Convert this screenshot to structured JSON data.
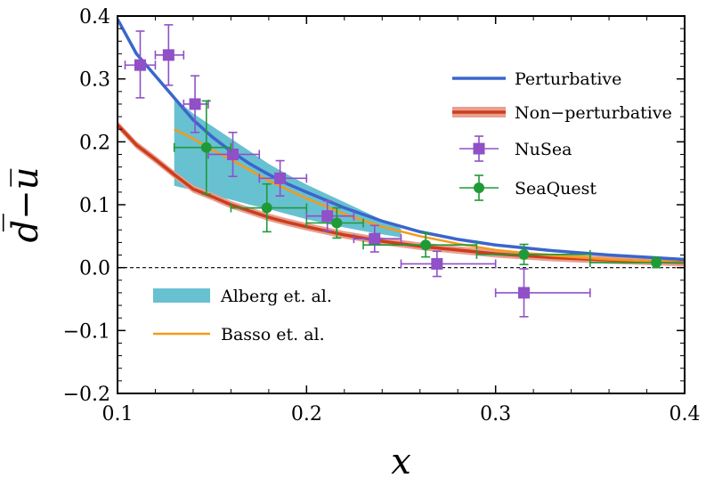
{
  "chart_data": {
    "type": "line",
    "xlabel": "x",
    "ylabel": "d̅−u̅",
    "xlim": [
      0.1,
      0.4
    ],
    "ylim": [
      -0.2,
      0.4
    ],
    "xticks": [
      0.1,
      0.2,
      0.3,
      0.4
    ],
    "xtick_labels": [
      "0.1",
      "0.2",
      "0.3",
      "0.4"
    ],
    "yticks": [
      -0.2,
      -0.1,
      0.0,
      0.1,
      0.2,
      0.3,
      0.4
    ],
    "ytick_labels": [
      "−0.2",
      "−0.1",
      "0.0",
      "0.1",
      "0.2",
      "0.3",
      "0.4"
    ],
    "grid": false,
    "zero_line": {
      "y": 0,
      "style": "dashed",
      "color": "#000000"
    },
    "legend_upper": {
      "placement": "top-right",
      "entries": [
        {
          "label": "Perturbative",
          "key": "perturbative"
        },
        {
          "label": "Non−perturbative",
          "key": "nonperturbative"
        },
        {
          "label": "NuSea",
          "key": "nusea"
        },
        {
          "label": "SeaQuest",
          "key": "seaquest"
        }
      ]
    },
    "legend_lower": {
      "placement": "bottom-left",
      "entries": [
        {
          "label": "Alberg et. al.",
          "key": "alberg"
        },
        {
          "label": "Basso et. al.",
          "key": "basso"
        }
      ]
    },
    "series": {
      "perturbative": {
        "color": "#3a66cc",
        "x": [
          0.1,
          0.11,
          0.12,
          0.13,
          0.14,
          0.15,
          0.16,
          0.17,
          0.18,
          0.19,
          0.2,
          0.22,
          0.24,
          0.26,
          0.28,
          0.3,
          0.33,
          0.36,
          0.4
        ],
        "y": [
          0.395,
          0.34,
          0.305,
          0.27,
          0.235,
          0.208,
          0.185,
          0.165,
          0.148,
          0.133,
          0.12,
          0.095,
          0.074,
          0.057,
          0.045,
          0.036,
          0.027,
          0.02,
          0.013
        ]
      },
      "nonperturbative": {
        "color": "#cc3d1c",
        "band_color": "#e8a090",
        "x": [
          0.1,
          0.11,
          0.12,
          0.13,
          0.14,
          0.15,
          0.16,
          0.17,
          0.18,
          0.19,
          0.2,
          0.22,
          0.24,
          0.26,
          0.28,
          0.3,
          0.33,
          0.36,
          0.4
        ],
        "y": [
          0.227,
          0.195,
          0.172,
          0.148,
          0.125,
          0.113,
          0.1,
          0.09,
          0.08,
          0.072,
          0.065,
          0.052,
          0.042,
          0.034,
          0.028,
          0.022,
          0.016,
          0.012,
          0.008
        ],
        "band": 0.006
      },
      "basso": {
        "color": "#f59a1a",
        "x": [
          0.13,
          0.14,
          0.15,
          0.16,
          0.17,
          0.18,
          0.19,
          0.2,
          0.22,
          0.24,
          0.26,
          0.28,
          0.3,
          0.33,
          0.36,
          0.4
        ],
        "y": [
          0.22,
          0.205,
          0.187,
          0.172,
          0.155,
          0.138,
          0.124,
          0.11,
          0.085,
          0.065,
          0.05,
          0.038,
          0.028,
          0.019,
          0.013,
          0.008
        ]
      },
      "alberg": {
        "color": "#67c1d1",
        "x": [
          0.13,
          0.14,
          0.15,
          0.16,
          0.17,
          0.18,
          0.19,
          0.2,
          0.21,
          0.22,
          0.23,
          0.24,
          0.25
        ],
        "lower": [
          0.13,
          0.123,
          0.115,
          0.108,
          0.1,
          0.093,
          0.085,
          0.077,
          0.07,
          0.064,
          0.058,
          0.053,
          0.048
        ],
        "upper": [
          0.27,
          0.245,
          0.225,
          0.205,
          0.185,
          0.165,
          0.148,
          0.132,
          0.118,
          0.104,
          0.09,
          0.076,
          0.062
        ]
      }
    },
    "points": {
      "nusea": {
        "color": "#9050c8",
        "marker": "square",
        "data": [
          {
            "x": 0.112,
            "y": 0.322,
            "xlo": 0.104,
            "xhi": 0.12,
            "ylo": 0.27,
            "yhi": 0.376
          },
          {
            "x": 0.127,
            "y": 0.338,
            "xlo": 0.12,
            "xhi": 0.135,
            "ylo": 0.29,
            "yhi": 0.386
          },
          {
            "x": 0.141,
            "y": 0.26,
            "xlo": 0.135,
            "xhi": 0.148,
            "ylo": 0.215,
            "yhi": 0.305
          },
          {
            "x": 0.161,
            "y": 0.18,
            "xlo": 0.148,
            "xhi": 0.175,
            "ylo": 0.145,
            "yhi": 0.215
          },
          {
            "x": 0.186,
            "y": 0.142,
            "xlo": 0.175,
            "xhi": 0.2,
            "ylo": 0.114,
            "yhi": 0.17
          },
          {
            "x": 0.211,
            "y": 0.082,
            "xlo": 0.2,
            "xhi": 0.225,
            "ylo": 0.058,
            "yhi": 0.106
          },
          {
            "x": 0.236,
            "y": 0.046,
            "xlo": 0.225,
            "xhi": 0.25,
            "ylo": 0.025,
            "yhi": 0.067
          },
          {
            "x": 0.269,
            "y": 0.006,
            "xlo": 0.25,
            "xhi": 0.3,
            "ylo": -0.014,
            "yhi": 0.026
          },
          {
            "x": 0.315,
            "y": -0.04,
            "xlo": 0.3,
            "xhi": 0.35,
            "ylo": -0.078,
            "yhi": -0.002
          }
        ]
      },
      "seaquest": {
        "color": "#1f9a37",
        "marker": "circle",
        "data": [
          {
            "x": 0.147,
            "y": 0.191,
            "xlo": 0.13,
            "xhi": 0.16,
            "ylo": 0.117,
            "yhi": 0.265
          },
          {
            "x": 0.179,
            "y": 0.095,
            "xlo": 0.16,
            "xhi": 0.2,
            "ylo": 0.057,
            "yhi": 0.133
          },
          {
            "x": 0.216,
            "y": 0.071,
            "xlo": 0.2,
            "xhi": 0.23,
            "ylo": 0.047,
            "yhi": 0.095
          },
          {
            "x": 0.263,
            "y": 0.036,
            "xlo": 0.23,
            "xhi": 0.29,
            "ylo": 0.017,
            "yhi": 0.055
          },
          {
            "x": 0.315,
            "y": 0.021,
            "xlo": 0.29,
            "xhi": 0.35,
            "ylo": 0.005,
            "yhi": 0.037
          },
          {
            "x": 0.385,
            "y": 0.008,
            "xlo": 0.35,
            "xhi": 0.4,
            "ylo": 0.0,
            "yhi": 0.016
          }
        ]
      }
    }
  }
}
